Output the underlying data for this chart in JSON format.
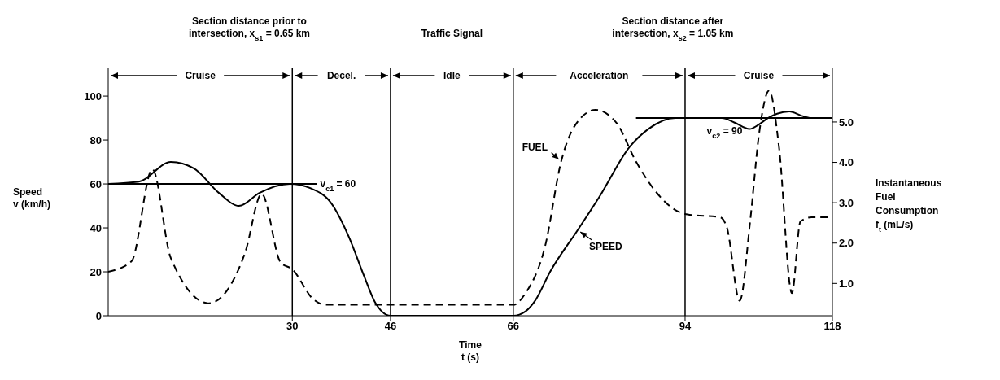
{
  "chart_data": {
    "type": "line",
    "xlabel": "Time\nt (s)",
    "ylabel": "Speed\nv  (km/h)",
    "y2label": "Instantaneous\nFuel\nConsumption\nf$_{t}$  (mL/s)",
    "xlim": [
      0,
      118
    ],
    "xticks": [
      30,
      46,
      66,
      94,
      118
    ],
    "ylim": [
      0,
      113
    ],
    "yticks": [
      0,
      20,
      40,
      60,
      80,
      100
    ],
    "y2lim": [
      0.2,
      6.35
    ],
    "y2ticks": [
      {
        "value": 1,
        "label": "1.0"
      },
      {
        "value": 2,
        "label": "2.0"
      },
      {
        "value": 3,
        "label": "3.0"
      },
      {
        "value": 4,
        "label": "4.0"
      },
      {
        "value": 5,
        "label": "5.0"
      }
    ],
    "grid": false,
    "marker": "none",
    "series": [
      {
        "name": "SPEED",
        "color": "#000000",
        "line_style": "solid",
        "x": [
          0,
          5,
          10.2,
          14,
          18,
          21.3,
          24.7,
          29.6,
          33,
          36.4,
          39.2,
          41.7,
          43.5,
          46,
          66,
          68,
          69.6,
          72,
          76.5,
          80,
          85,
          88,
          92.4,
          100,
          102,
          104.5,
          106,
          107.5,
          109,
          111,
          113,
          114.5,
          118
        ],
        "values": [
          60,
          61,
          70,
          67,
          56,
          50,
          56,
          60,
          58,
          51,
          36,
          18,
          6,
          0,
          0,
          2,
          7,
          20,
          39,
          54,
          77,
          85,
          90,
          90,
          88,
          85,
          87,
          90,
          92,
          93,
          91,
          90,
          90
        ]
      },
      {
        "name": "FUEL",
        "color": "#000000",
        "line_style": "dashed",
        "axis": "y2",
        "x": [
          0,
          3.8,
          7.2,
          10.2,
          16.4,
          22.3,
          25,
          28.1,
          30,
          33.4,
          35.4,
          66,
          68,
          71.2,
          73.8,
          76,
          79.4,
          82.8,
          86,
          89.2,
          92.4,
          94.4,
          99.7,
          100.8,
          102.9,
          104.6,
          106.1,
          107.7,
          109.3,
          111.4,
          112.8,
          114.6,
          118
        ],
        "values": [
          1.29,
          1.55,
          3.83,
          1.63,
          0.51,
          1.76,
          3.22,
          1.52,
          1.35,
          0.61,
          0.47,
          0.47,
          0.76,
          1.93,
          4.02,
          4.9,
          5.3,
          4.98,
          4.02,
          3.28,
          2.82,
          2.71,
          2.64,
          2.39,
          0.57,
          2.54,
          4.76,
          5.78,
          4.38,
          0.76,
          2.54,
          2.64,
          2.64
        ]
      },
      {
        "color": "#000000",
        "line_style": "solid",
        "x": [
          0,
          34
        ],
        "values": [
          60,
          60
        ]
      },
      {
        "color": "#000000",
        "line_style": "solid",
        "x": [
          86,
          118
        ],
        "values": [
          90,
          90
        ]
      }
    ],
    "ref_lines": [
      {
        "axis": "x",
        "value": 30
      },
      {
        "axis": "x",
        "value": 46
      },
      {
        "axis": "x",
        "value": 66
      },
      {
        "axis": "x",
        "value": 94
      }
    ],
    "annotations": [
      "Section distance prior to\nintersection, x$_{s1}$ = 0.65 km",
      "Traffic Signal",
      "Section distance after\nintersection, x$_{s2}$ = 1.05 km",
      "Cruise",
      "Decel.",
      "Idle",
      "Acceleration",
      "Cruise",
      {
        "text": "v$_{c1}$ = 60",
        "x": 34,
        "y": 60
      },
      {
        "text": "v$_{c2}$ = 90",
        "x": 97,
        "y": 90
      }
    ]
  }
}
